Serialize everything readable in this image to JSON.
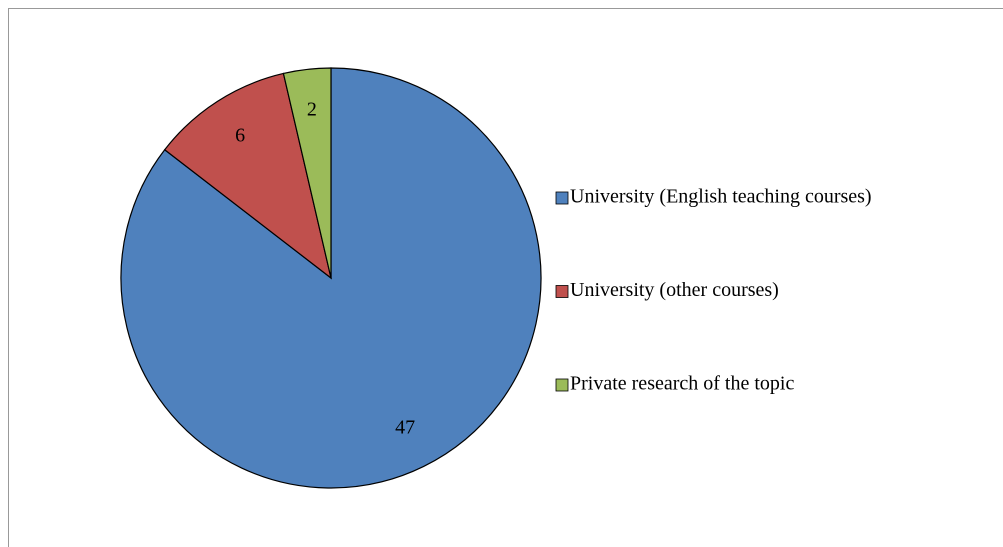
{
  "chart_data": {
    "type": "pie",
    "categories": [
      "University (English teaching courses)",
      "University (other courses)",
      "Private research of the topic"
    ],
    "values": [
      47,
      6,
      2
    ],
    "colors": [
      "#4f81bd",
      "#c0504d",
      "#9bbb59"
    ],
    "legend": "right"
  }
}
